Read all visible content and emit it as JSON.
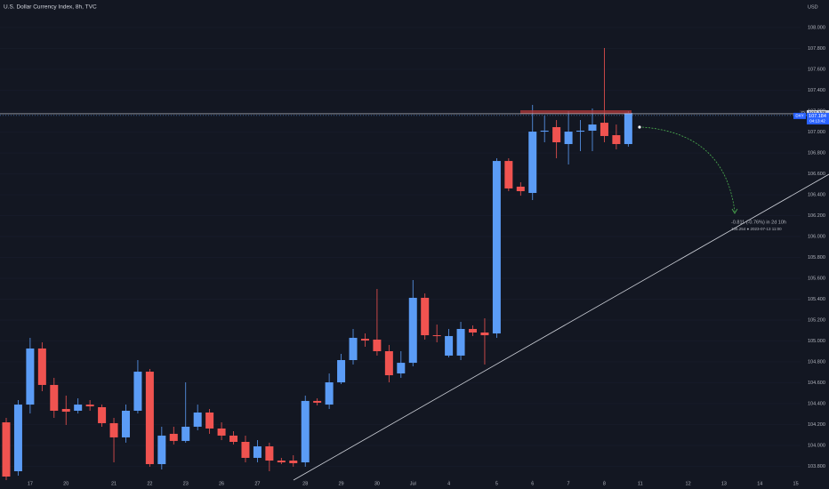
{
  "title": "U.S. Dollar Currency Index, 8h, TVC",
  "currency": "USD",
  "chart_data": {
    "type": "candlestick",
    "up_color": "#5b9cf6",
    "down_color": "#f05350",
    "open": [
      104.221,
      103.753,
      104.391,
      104.928,
      104.579,
      104.349,
      104.332,
      104.391,
      104.366,
      104.213,
      104.077,
      104.332,
      104.706,
      103.821,
      104.111,
      104.043,
      104.179,
      104.315,
      104.162,
      104.094,
      104.034,
      103.881,
      103.991,
      103.855,
      103.855,
      103.838,
      104.426,
      104.391,
      104.604,
      104.817,
      105.021,
      105.013,
      104.902,
      104.689,
      104.791,
      105.413,
      105.055,
      104.86,
      104.86,
      105.115,
      105.081,
      105.072,
      106.723,
      106.477,
      106.417,
      107.004,
      107.047,
      106.885,
      107.004,
      107.013,
      107.089,
      106.97,
      106.885
    ],
    "high": [
      104.264,
      104.434,
      105.03,
      104.987,
      104.647,
      104.477,
      104.451,
      104.434,
      104.391,
      104.264,
      104.391,
      104.817,
      104.732,
      104.179,
      104.179,
      104.604,
      104.391,
      104.349,
      104.221,
      104.136,
      104.094,
      104.051,
      104.026,
      103.881,
      103.906,
      104.477,
      104.451,
      104.689,
      104.877,
      105.115,
      105.072,
      105.498,
      104.962,
      104.902,
      105.583,
      105.455,
      105.157,
      105.115,
      105.183,
      105.149,
      105.217,
      106.749,
      106.749,
      106.519,
      107.26,
      107.157,
      107.115,
      107.2,
      107.115,
      107.226,
      107.804,
      107.072,
      107.2
    ],
    "low": [
      103.668,
      103.711,
      104.306,
      104.519,
      104.264,
      104.196,
      104.306,
      104.332,
      104.179,
      103.838,
      104.026,
      104.306,
      103.796,
      103.77,
      104.009,
      104.026,
      104.145,
      104.111,
      104.051,
      104.009,
      103.838,
      103.838,
      103.753,
      103.821,
      103.796,
      103.796,
      104.383,
      104.349,
      104.587,
      104.774,
      104.945,
      104.86,
      104.604,
      104.647,
      104.757,
      105.013,
      104.987,
      104.843,
      104.817,
      105.047,
      104.774,
      105.03,
      106.434,
      106.391,
      106.349,
      106.902,
      106.749,
      106.689,
      106.817,
      106.817,
      106.902,
      106.834,
      106.86
    ],
    "close": [
      103.702,
      104.391,
      104.928,
      104.579,
      104.332,
      104.323,
      104.391,
      104.374,
      104.213,
      104.077,
      104.332,
      104.706,
      103.821,
      104.094,
      104.043,
      104.179,
      104.315,
      104.162,
      104.094,
      104.034,
      103.881,
      103.991,
      103.855,
      103.838,
      103.83,
      104.426,
      104.409,
      104.604,
      104.817,
      105.03,
      105.004,
      104.902,
      104.672,
      104.791,
      105.413,
      105.055,
      105.047,
      105.047,
      105.115,
      105.081,
      105.055,
      106.723,
      106.46,
      106.434,
      107.004,
      107.013,
      106.902,
      107.004,
      107.013,
      107.072,
      106.962,
      106.885,
      107.184
    ],
    "ylim": [
      103.668,
      108.264
    ],
    "yticks": [
      {
        "value": 103.8,
        "label": "103.800"
      },
      {
        "value": 104.0,
        "label": "104.000"
      },
      {
        "value": 104.2,
        "label": "104.200"
      },
      {
        "value": 104.4,
        "label": "104.400"
      },
      {
        "value": 104.6,
        "label": "104.600"
      },
      {
        "value": 104.8,
        "label": "104.800"
      },
      {
        "value": 105.0,
        "label": "105.000"
      },
      {
        "value": 105.2,
        "label": "105.200"
      },
      {
        "value": 105.4,
        "label": "105.400"
      },
      {
        "value": 105.6,
        "label": "105.600"
      },
      {
        "value": 105.8,
        "label": "105.800"
      },
      {
        "value": 106.0,
        "label": "106.000"
      },
      {
        "value": 106.2,
        "label": "106.200"
      },
      {
        "value": 106.4,
        "label": "106.400"
      },
      {
        "value": 106.6,
        "label": "106.600"
      },
      {
        "value": 106.8,
        "label": "106.800"
      },
      {
        "value": 107.0,
        "label": "107.000"
      },
      {
        "value": 107.2,
        "label": "107.200"
      },
      {
        "value": 107.4,
        "label": "107.400"
      },
      {
        "value": 107.6,
        "label": "107.600"
      },
      {
        "value": 107.8,
        "label": "107.800"
      },
      {
        "value": 108.0,
        "label": "108.000"
      }
    ],
    "xlim": [
      -0.52,
      66.4
    ],
    "xticks": [
      {
        "value": 2,
        "label": "17"
      },
      {
        "value": 5,
        "label": "20"
      },
      {
        "value": 9,
        "label": "21"
      },
      {
        "value": 12,
        "label": "22"
      },
      {
        "value": 15,
        "label": "23"
      },
      {
        "value": 18,
        "label": "26"
      },
      {
        "value": 21,
        "label": "27"
      },
      {
        "value": 25,
        "label": "28"
      },
      {
        "value": 28,
        "label": "29"
      },
      {
        "value": 31,
        "label": "30"
      },
      {
        "value": 34,
        "label": "Jul"
      },
      {
        "value": 37,
        "label": "4"
      },
      {
        "value": 41,
        "label": "5"
      },
      {
        "value": 44,
        "label": "6"
      },
      {
        "value": 47,
        "label": "7"
      },
      {
        "value": 50,
        "label": "8"
      },
      {
        "value": 53,
        "label": "11"
      },
      {
        "value": 57,
        "label": "12"
      },
      {
        "value": 60,
        "label": "13"
      },
      {
        "value": 63,
        "label": "14"
      },
      {
        "value": 66,
        "label": "15"
      }
    ]
  },
  "price_line": {
    "marker": "D",
    "value": 107.175,
    "label": "107.175"
  },
  "last_price": {
    "symbol": "DXY",
    "value": 107.184,
    "label": "107.184",
    "countdown": "04:13:42"
  },
  "projection": {
    "change": "-0.811 (-0.76%) in 2d 10h",
    "target": "106.254 ● 2023-07-13 11:00"
  }
}
